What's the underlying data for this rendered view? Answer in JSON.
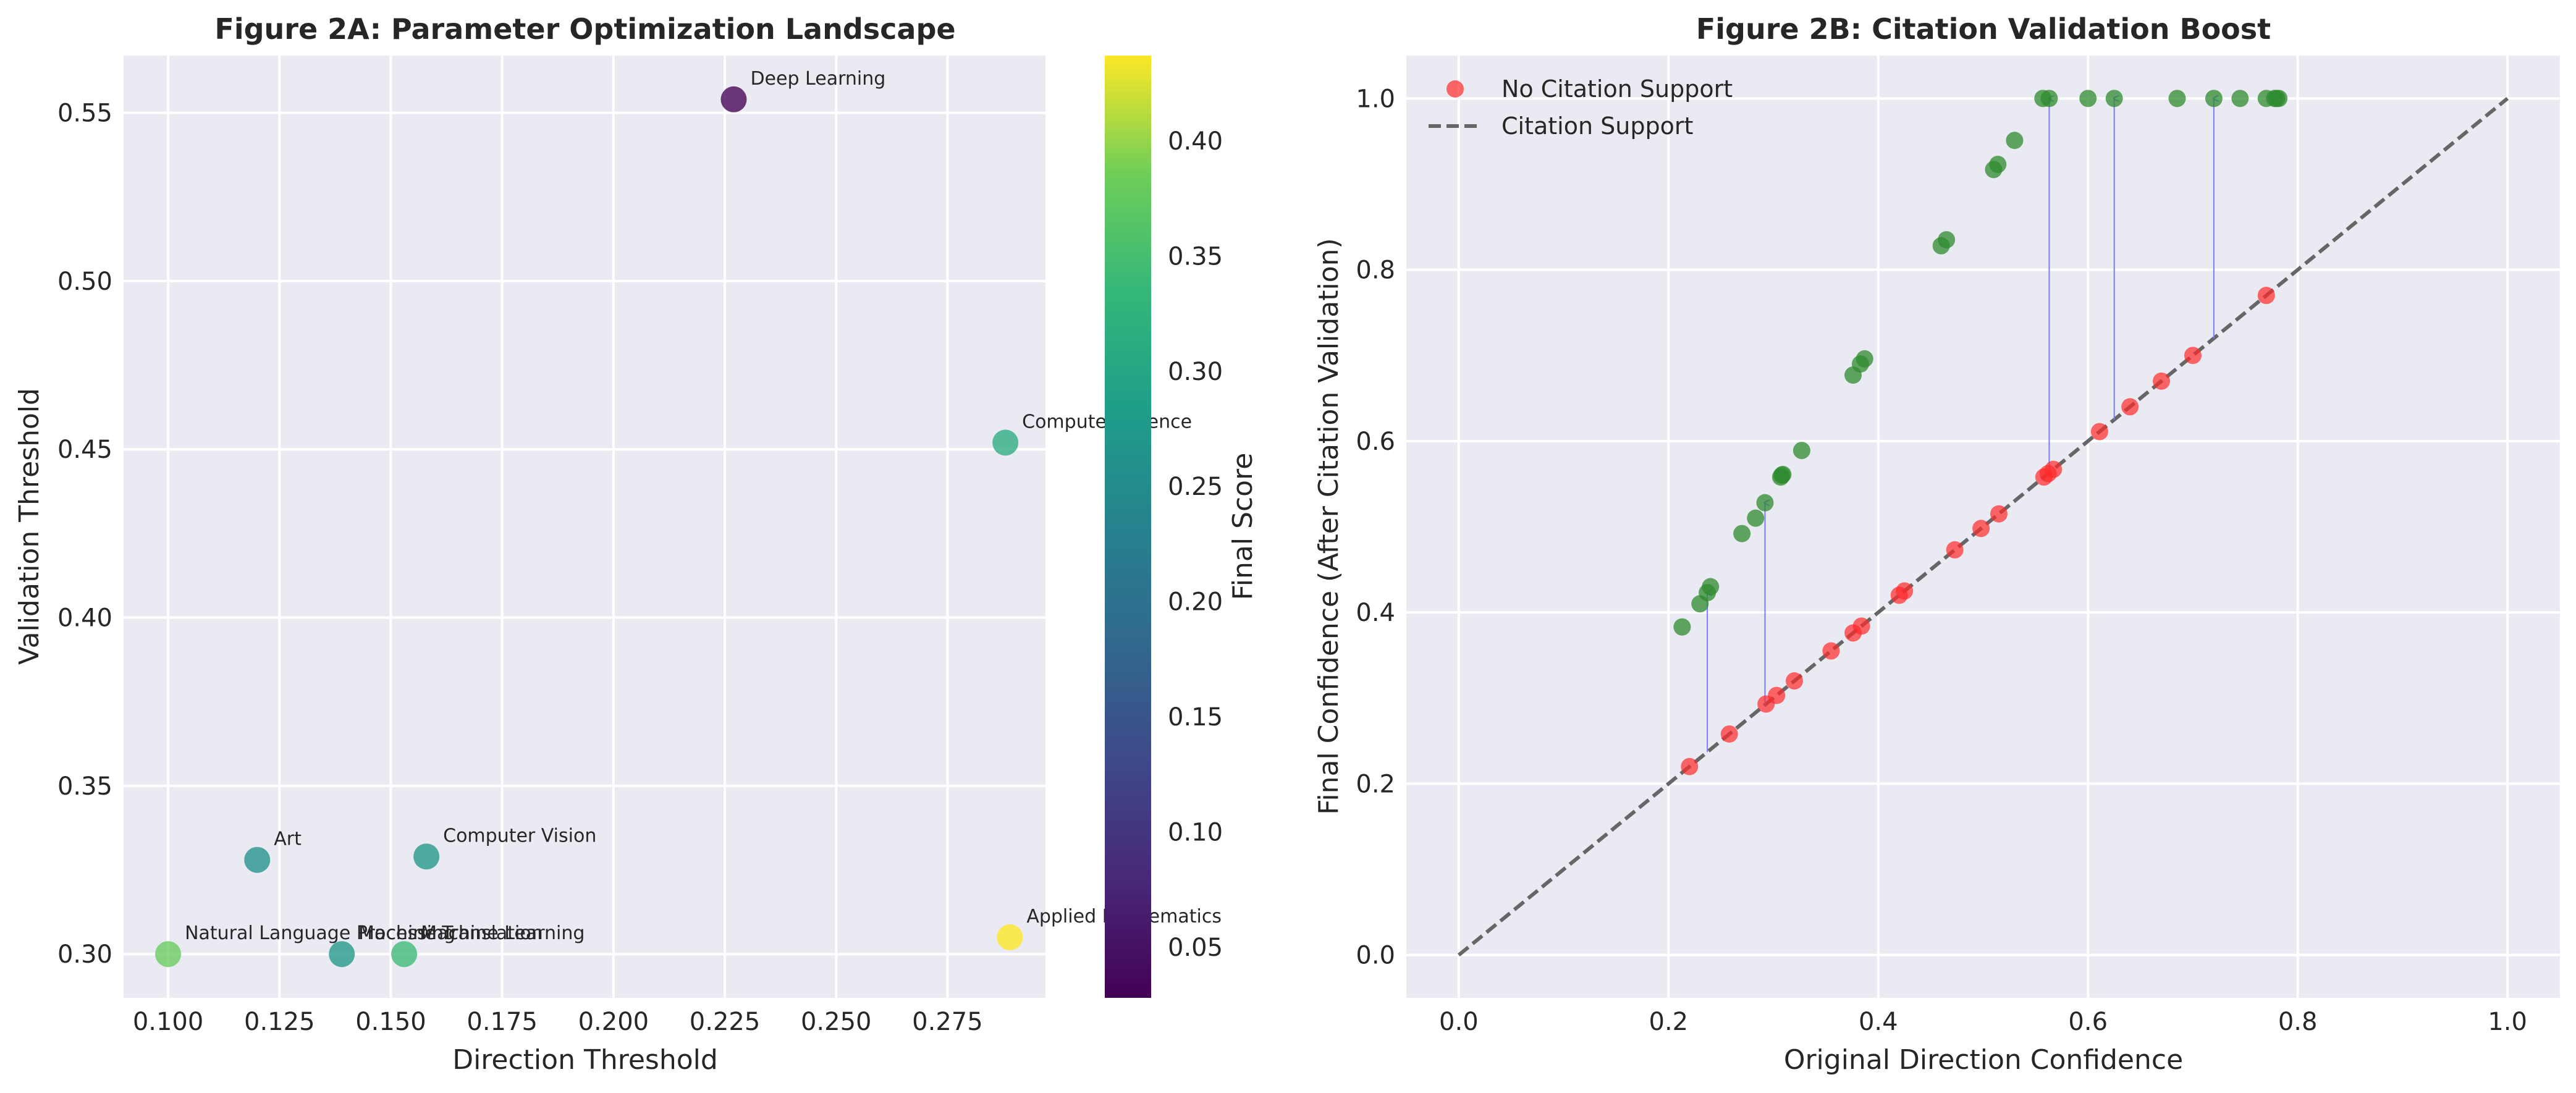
{
  "chart_data": [
    {
      "type": "scatter",
      "title": "Figure 2A: Parameter Optimization Landscape",
      "xlabel": "Direction Threshold",
      "ylabel": "Validation Threshold",
      "xlim": [
        0.09,
        0.297
      ],
      "ylim": [
        0.287,
        0.567
      ],
      "xticks": [
        "0.100",
        "0.125",
        "0.150",
        "0.175",
        "0.200",
        "0.225",
        "0.250",
        "0.275"
      ],
      "yticks": [
        "0.30",
        "0.35",
        "0.40",
        "0.45",
        "0.50",
        "0.55"
      ],
      "grid": true,
      "colorbar": {
        "label": "Final Score",
        "colormap": "viridis",
        "range": [
          0.028,
          0.437
        ],
        "ticks": [
          "0.05",
          "0.10",
          "0.15",
          "0.20",
          "0.25",
          "0.30",
          "0.35",
          "0.40"
        ]
      },
      "points": [
        {
          "label": "Deep Learning",
          "x": 0.227,
          "y": 0.554,
          "score": 0.028
        },
        {
          "label": "Computer Science",
          "x": 0.288,
          "y": 0.452,
          "score": 0.31
        },
        {
          "label": "Computer Vision",
          "x": 0.158,
          "y": 0.329,
          "score": 0.27
        },
        {
          "label": "Art",
          "x": 0.12,
          "y": 0.328,
          "score": 0.26
        },
        {
          "label": "Natural Language Processing",
          "x": 0.1,
          "y": 0.3,
          "score": 0.38
        },
        {
          "label": "Machine Translation",
          "x": 0.139,
          "y": 0.3,
          "score": 0.27
        },
        {
          "label": "Machine Learning",
          "x": 0.153,
          "y": 0.3,
          "score": 0.34
        },
        {
          "label": "Applied Mathematics",
          "x": 0.289,
          "y": 0.305,
          "score": 0.437
        }
      ]
    },
    {
      "type": "scatter",
      "title": "Figure 2B: Citation Validation Boost",
      "xlabel": "Original Direction Confidence",
      "ylabel": "Final Confidence (After Citation Validation)",
      "xlim": [
        -0.05,
        1.05
      ],
      "ylim": [
        -0.05,
        1.05
      ],
      "xticks": [
        "0.0",
        "0.2",
        "0.4",
        "0.6",
        "0.8",
        "1.0"
      ],
      "yticks": [
        "0.0",
        "0.2",
        "0.4",
        "0.6",
        "0.8",
        "1.0"
      ],
      "grid": true,
      "legend_position": "top-left",
      "colors": {
        "no_citation": "#ff2a2a",
        "citation": "#2e8b2e",
        "arrow": "#7b7bff",
        "diagonal": "#666666"
      },
      "series": [
        {
          "name": "No Citation Support",
          "x": [
            0.22,
            0.258,
            0.293,
            0.303,
            0.32,
            0.355,
            0.376,
            0.384,
            0.42,
            0.425,
            0.473,
            0.498,
            0.515,
            0.558,
            0.562,
            0.567,
            0.611,
            0.64,
            0.67,
            0.7,
            0.77
          ],
          "y": [
            0.22,
            0.258,
            0.293,
            0.303,
            0.32,
            0.355,
            0.376,
            0.384,
            0.42,
            0.425,
            0.473,
            0.498,
            0.515,
            0.558,
            0.562,
            0.567,
            0.611,
            0.64,
            0.67,
            0.7,
            0.77
          ]
        },
        {
          "name": "Citation Support",
          "line": "diagonal y = x (dashed)",
          "x": [
            0.213,
            0.23,
            0.237,
            0.24,
            0.27,
            0.283,
            0.292,
            0.307,
            0.308,
            0.309,
            0.327,
            0.376,
            0.383,
            0.387,
            0.46,
            0.465,
            0.51,
            0.514,
            0.53,
            0.557,
            0.563,
            0.6,
            0.625,
            0.685,
            0.72,
            0.745,
            0.77,
            0.778,
            0.78,
            0.782
          ],
          "y": [
            0.383,
            0.41,
            0.423,
            0.43,
            0.492,
            0.51,
            0.528,
            0.558,
            0.56,
            0.561,
            0.589,
            0.677,
            0.69,
            0.696,
            0.828,
            0.835,
            0.917,
            0.923,
            0.951,
            1.0,
            1.0,
            1.0,
            1.0,
            1.0,
            1.0,
            1.0,
            1.0,
            1.0,
            1.0,
            1.0
          ]
        }
      ],
      "boost_arrows": [
        {
          "x": 0.237,
          "from": 0.237,
          "to": 0.423
        },
        {
          "x": 0.292,
          "from": 0.292,
          "to": 0.528
        },
        {
          "x": 0.563,
          "from": 0.563,
          "to": 1.0
        },
        {
          "x": 0.625,
          "from": 0.625,
          "to": 1.0
        },
        {
          "x": 0.72,
          "from": 0.72,
          "to": 1.0
        }
      ]
    }
  ]
}
